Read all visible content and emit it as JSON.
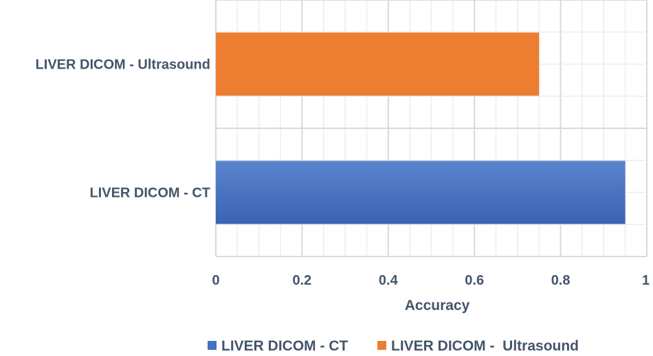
{
  "chart_data": {
    "type": "bar",
    "orientation": "horizontal",
    "categories": [
      "LIVER DICOM - CT",
      "LIVER DICOM - Ultrasound"
    ],
    "series": [
      {
        "name": "LIVER DICOM - CT",
        "values": [
          0.95,
          null
        ],
        "color": "#4472c4"
      },
      {
        "name": "LIVER DICOM -  Ultrasound",
        "values": [
          null,
          0.75
        ],
        "color": "#ed7d31"
      }
    ],
    "xlabel": "Accuracy",
    "ylabel": "",
    "title": "",
    "xlim": [
      0,
      1
    ],
    "x_ticks": [
      "0",
      "0.2",
      "0.4",
      "0.6",
      "0.8",
      "1"
    ],
    "grid": true,
    "legend_position": "bottom"
  },
  "colors": {
    "ct": "#4472c4",
    "ultrasound": "#ed7d31",
    "text": "#44546a",
    "grid": "#dcdcdc"
  }
}
